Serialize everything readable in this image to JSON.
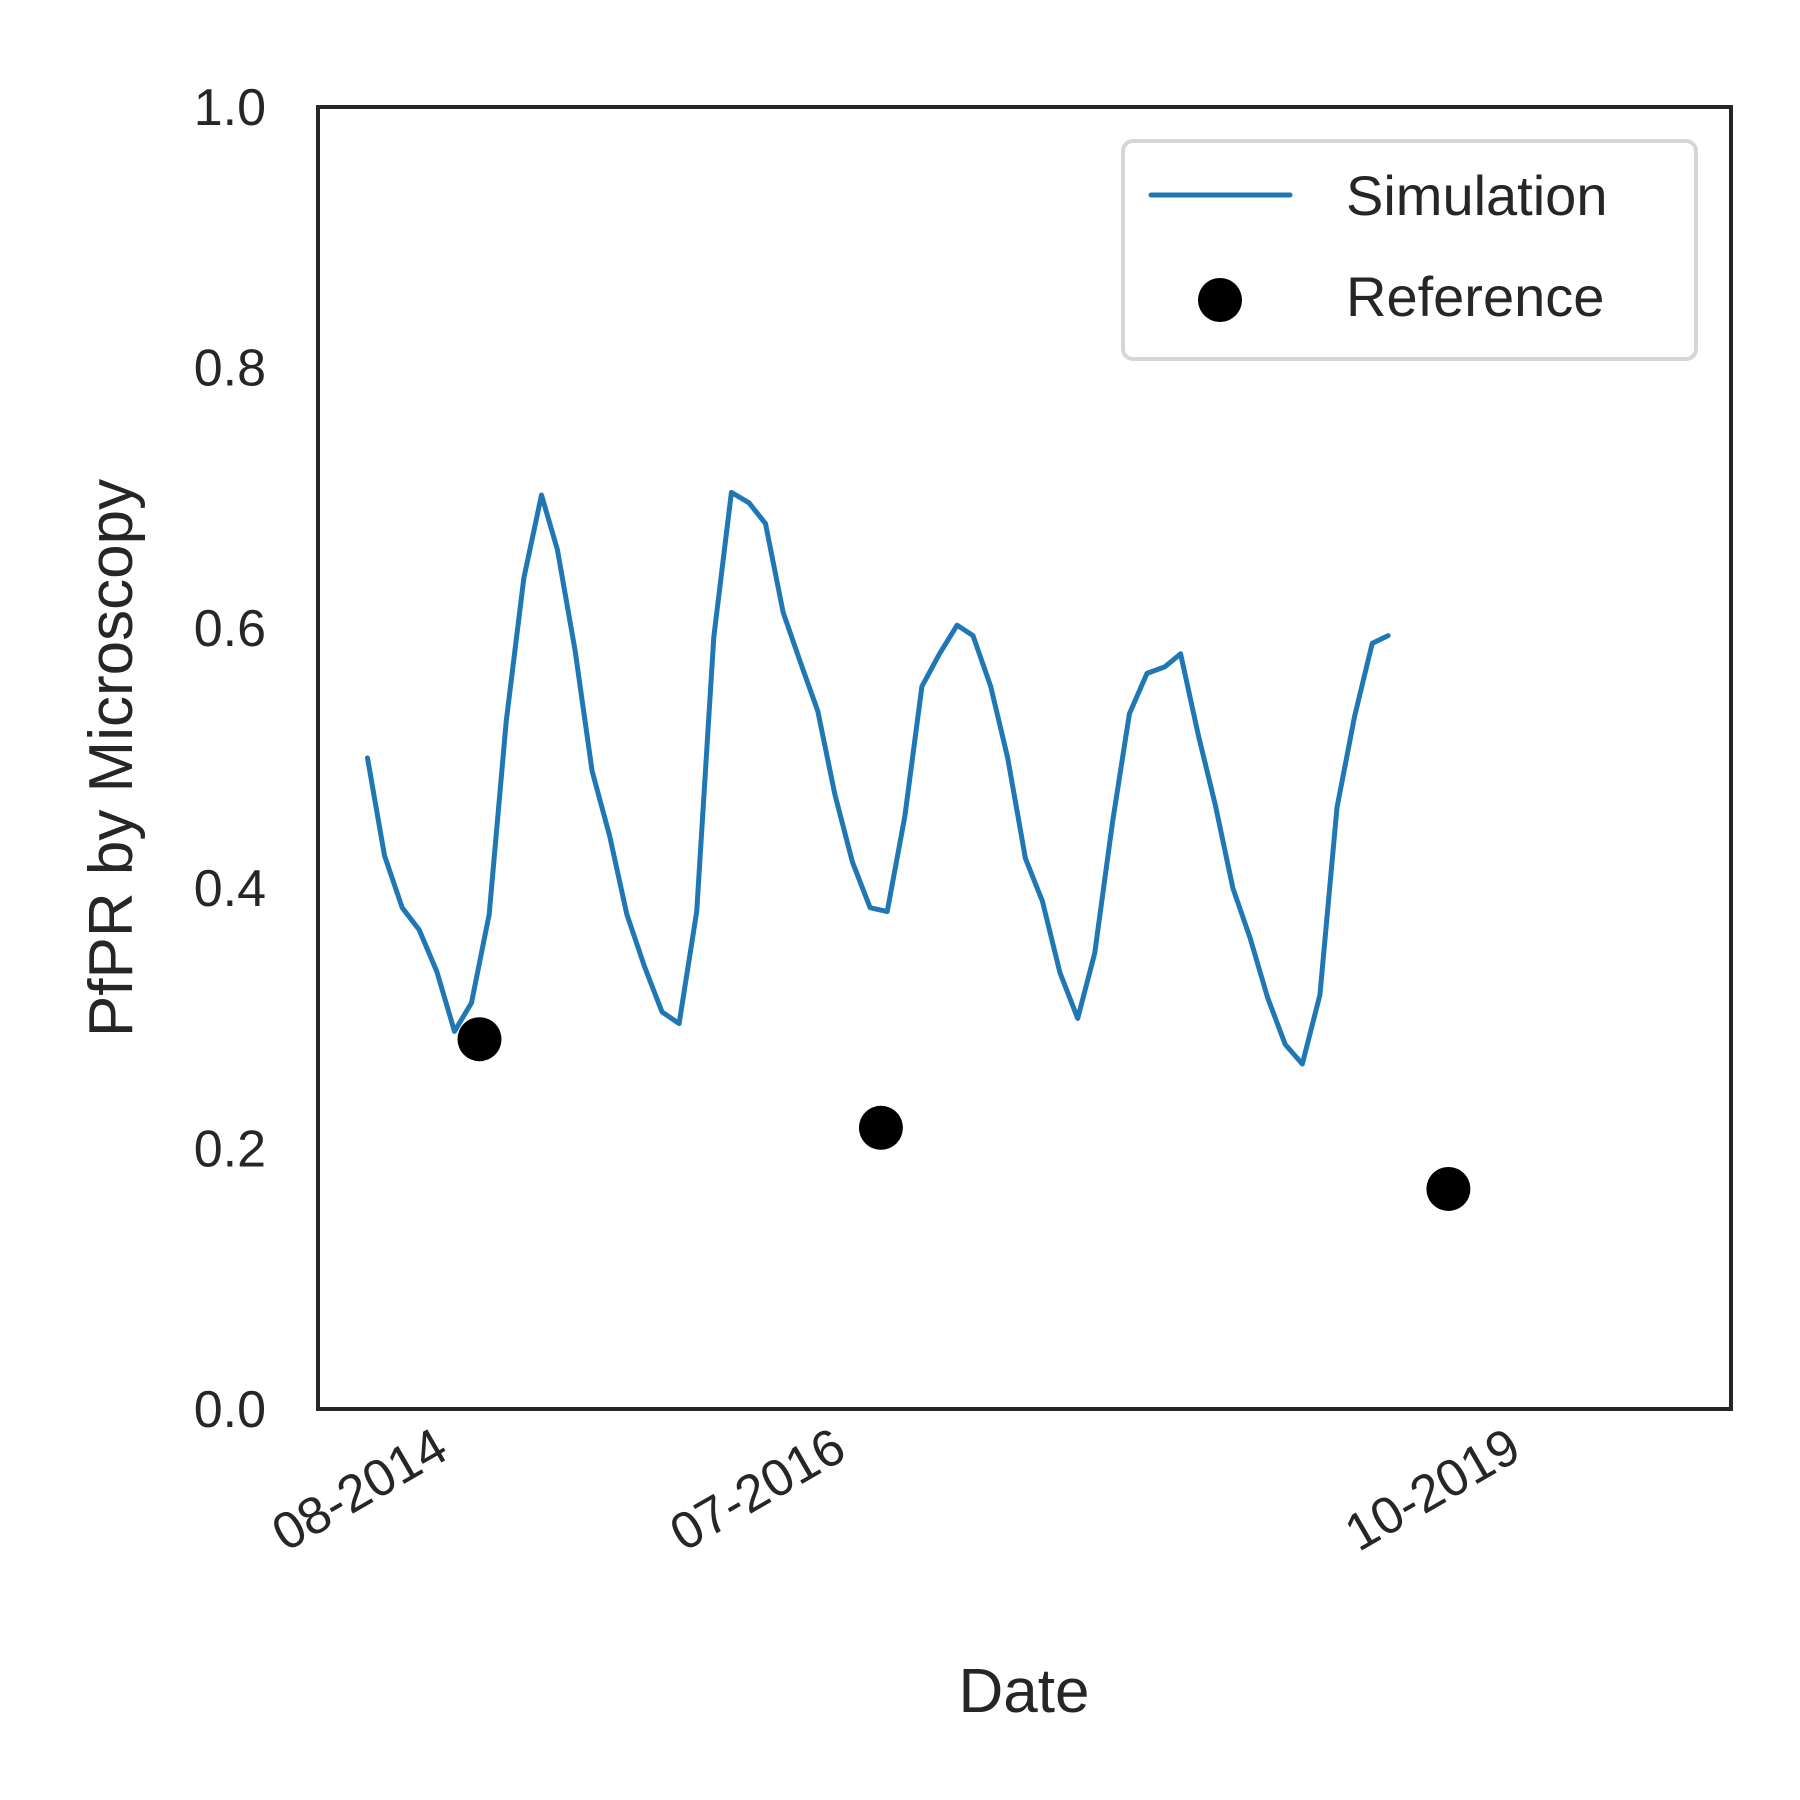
{
  "chart_data": {
    "type": "line",
    "title": "",
    "xlabel": "Date",
    "ylabel": "PfPR by Microscopy",
    "ylim": [
      0,
      1
    ],
    "yticks": [
      "0.0",
      "0.2",
      "0.4",
      "0.6",
      "0.8",
      "1.0"
    ],
    "xlim": [
      "2014-01-04",
      "2020-10-24"
    ],
    "xticks": [
      {
        "date": "2014-08-01",
        "label": "08-2014"
      },
      {
        "date": "2016-07-01",
        "label": "07-2016"
      },
      {
        "date": "2019-10-01",
        "label": "10-2019"
      }
    ],
    "grid": false,
    "legend": {
      "position": "top-right"
    },
    "series": [
      {
        "name": "Simulation",
        "kind": "line",
        "color": "#1f77b4",
        "points": [
          [
            "2014-04-01",
            0.5
          ],
          [
            "2014-05-01",
            0.425
          ],
          [
            "2014-06-01",
            0.385
          ],
          [
            "2014-07-01",
            0.368
          ],
          [
            "2014-08-01",
            0.336
          ],
          [
            "2014-09-01",
            0.29
          ],
          [
            "2014-10-01",
            0.312
          ],
          [
            "2014-11-01",
            0.38
          ],
          [
            "2014-12-01",
            0.528
          ],
          [
            "2015-01-01",
            0.638
          ],
          [
            "2015-02-01",
            0.702
          ],
          [
            "2015-03-01",
            0.66
          ],
          [
            "2015-04-01",
            0.583
          ],
          [
            "2015-05-01",
            0.49
          ],
          [
            "2015-06-01",
            0.44
          ],
          [
            "2015-07-01",
            0.38
          ],
          [
            "2015-08-01",
            0.34
          ],
          [
            "2015-09-01",
            0.305
          ],
          [
            "2015-10-01",
            0.296
          ],
          [
            "2015-11-01",
            0.382
          ],
          [
            "2015-12-01",
            0.593
          ],
          [
            "2016-01-01",
            0.704
          ],
          [
            "2016-02-01",
            0.696
          ],
          [
            "2016-03-01",
            0.68
          ],
          [
            "2016-04-01",
            0.612
          ],
          [
            "2016-05-01",
            0.574
          ],
          [
            "2016-06-01",
            0.536
          ],
          [
            "2016-07-01",
            0.472
          ],
          [
            "2016-08-01",
            0.42
          ],
          [
            "2016-09-01",
            0.385
          ],
          [
            "2016-10-01",
            0.382
          ],
          [
            "2016-11-01",
            0.455
          ],
          [
            "2016-12-01",
            0.555
          ],
          [
            "2017-01-01",
            0.58
          ],
          [
            "2017-02-01",
            0.602
          ],
          [
            "2017-03-01",
            0.594
          ],
          [
            "2017-04-01",
            0.555
          ],
          [
            "2017-05-01",
            0.5
          ],
          [
            "2017-06-01",
            0.423
          ],
          [
            "2017-07-01",
            0.39
          ],
          [
            "2017-08-01",
            0.335
          ],
          [
            "2017-09-01",
            0.3
          ],
          [
            "2017-10-01",
            0.35
          ],
          [
            "2017-11-01",
            0.45
          ],
          [
            "2017-12-01",
            0.534
          ],
          [
            "2018-01-01",
            0.565
          ],
          [
            "2018-02-01",
            0.57
          ],
          [
            "2018-03-01",
            0.58
          ],
          [
            "2018-04-01",
            0.518
          ],
          [
            "2018-05-01",
            0.464
          ],
          [
            "2018-06-01",
            0.4
          ],
          [
            "2018-07-01",
            0.362
          ],
          [
            "2018-08-01",
            0.316
          ],
          [
            "2018-09-01",
            0.28
          ],
          [
            "2018-10-01",
            0.265
          ],
          [
            "2018-11-01",
            0.318
          ],
          [
            "2018-12-01",
            0.462
          ],
          [
            "2019-01-01",
            0.532
          ],
          [
            "2019-02-01",
            0.588
          ],
          [
            "2019-03-01",
            0.594
          ]
        ]
      },
      {
        "name": "Reference",
        "kind": "scatter",
        "color": "#000000",
        "points": [
          [
            "2014-10-15",
            0.284
          ],
          [
            "2016-09-20",
            0.216
          ],
          [
            "2019-06-15",
            0.169
          ]
        ]
      }
    ]
  }
}
